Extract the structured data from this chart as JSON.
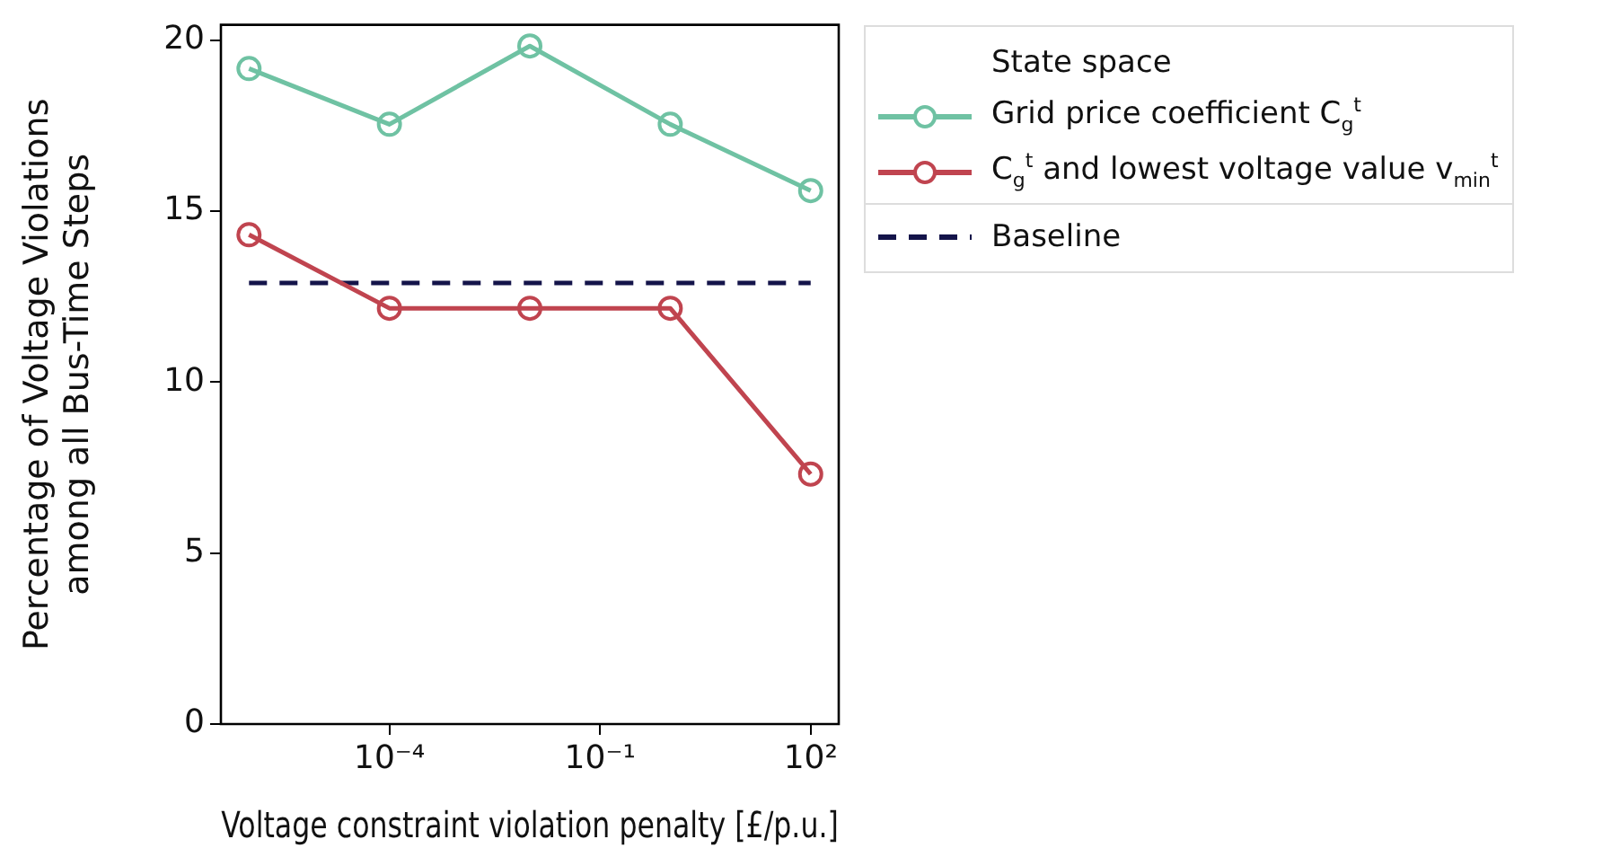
{
  "chart_data": {
    "type": "line",
    "xlabel": "Voltage constraint violation penalty [£/p.u.]",
    "ylabel": "Percentage of Voltage Violations\namong all Bus-Time Steps",
    "legend_title": "State space",
    "log": "x",
    "x": [
      1e-06,
      0.0001,
      0.01,
      1,
      100
    ],
    "xlim": [
      3.98e-07,
      251
    ],
    "xticks": [
      {
        "value": 0.0001,
        "label": "10⁻⁴"
      },
      {
        "value": 0.1,
        "label": "10⁻¹"
      },
      {
        "value": 100,
        "label": "10²"
      }
    ],
    "ylim": [
      0,
      20.45
    ],
    "yticks": [
      0,
      5,
      10,
      15,
      20
    ],
    "grid": false,
    "legend": "right",
    "marker": "circle",
    "series": [
      {
        "name": "Grid price coefficient C$_{g}$$^{t}$",
        "color": "#6fc2a3",
        "values": [
          19.17,
          17.54,
          19.83,
          17.54,
          15.6
        ]
      },
      {
        "name": "C$_{g}$$^{t}$ and lowest voltage value v$_{min}$$^{t}$",
        "color": "#c0444f",
        "values": [
          14.31,
          12.16,
          12.16,
          12.16,
          7.31
        ]
      },
      {
        "name": "Baseline",
        "color": "#14144a",
        "x": [
          1e-06,
          100
        ],
        "values": [
          12.9,
          12.9
        ],
        "line_style": "dashed",
        "marker": "none"
      }
    ]
  }
}
